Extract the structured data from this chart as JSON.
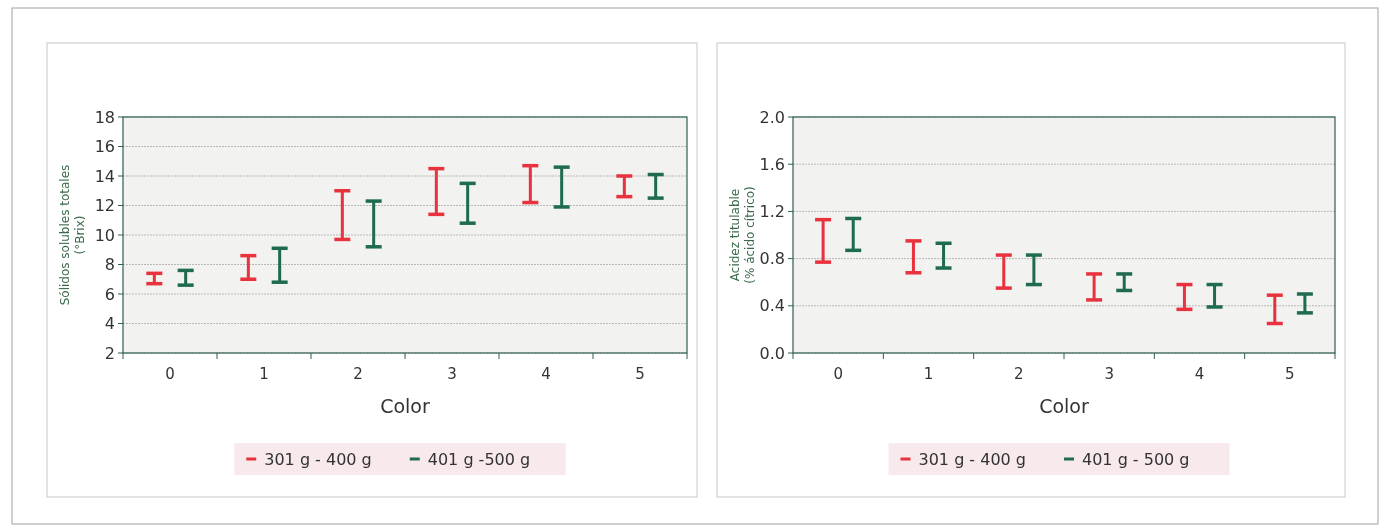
{
  "chart_data": [
    {
      "type": "bar",
      "xlabel": "Color",
      "ylabel": "Sólidos solubles totales\n(°Brix)",
      "categories": [
        "0",
        "1",
        "2",
        "3",
        "4",
        "5"
      ],
      "series": [
        {
          "name": "301 g - 400 g",
          "color": "#e8333f",
          "base": [
            6.7,
            7.0,
            9.7,
            11.4,
            12.2,
            12.6
          ],
          "values": [
            0.7,
            1.6,
            3.3,
            3.1,
            2.5,
            1.4
          ]
        },
        {
          "name": "401 g -500 g",
          "color": "#1f6b4f",
          "base": [
            6.6,
            6.8,
            9.2,
            10.8,
            11.9,
            12.5
          ],
          "values": [
            1.0,
            2.3,
            3.1,
            2.7,
            2.7,
            1.6
          ]
        }
      ],
      "ylim": [
        2,
        18
      ],
      "yticks": [
        2,
        4,
        6,
        8,
        10,
        12,
        14,
        16,
        18
      ],
      "grid": "y",
      "legend": "bottom"
    },
    {
      "type": "bar",
      "xlabel": "Color",
      "ylabel": "Acidez titulable\n(% ácido cítrico)",
      "categories": [
        "0",
        "1",
        "2",
        "3",
        "4",
        "5"
      ],
      "series": [
        {
          "name": "301 g - 400 g",
          "color": "#e8333f",
          "base": [
            0.77,
            0.68,
            0.55,
            0.45,
            0.37,
            0.25
          ],
          "values": [
            0.36,
            0.27,
            0.28,
            0.22,
            0.21,
            0.24
          ]
        },
        {
          "name": "401 g - 500 g",
          "color": "#1f6b4f",
          "base": [
            0.87,
            0.72,
            0.58,
            0.53,
            0.39,
            0.34
          ],
          "values": [
            0.27,
            0.21,
            0.25,
            0.14,
            0.19,
            0.16
          ]
        }
      ],
      "ylim": [
        0,
        2
      ],
      "yticks": [
        {
          "value": 0,
          "label": "0.0"
        },
        {
          "value": 0.4,
          "label": "0.4"
        },
        {
          "value": 0.8,
          "label": "0.8"
        },
        {
          "value": 1.2,
          "label": "1.2"
        },
        {
          "value": 1.6,
          "label": "1.6"
        },
        {
          "value": 2,
          "label": "2.0"
        }
      ],
      "grid": "y",
      "legend": "bottom"
    }
  ]
}
